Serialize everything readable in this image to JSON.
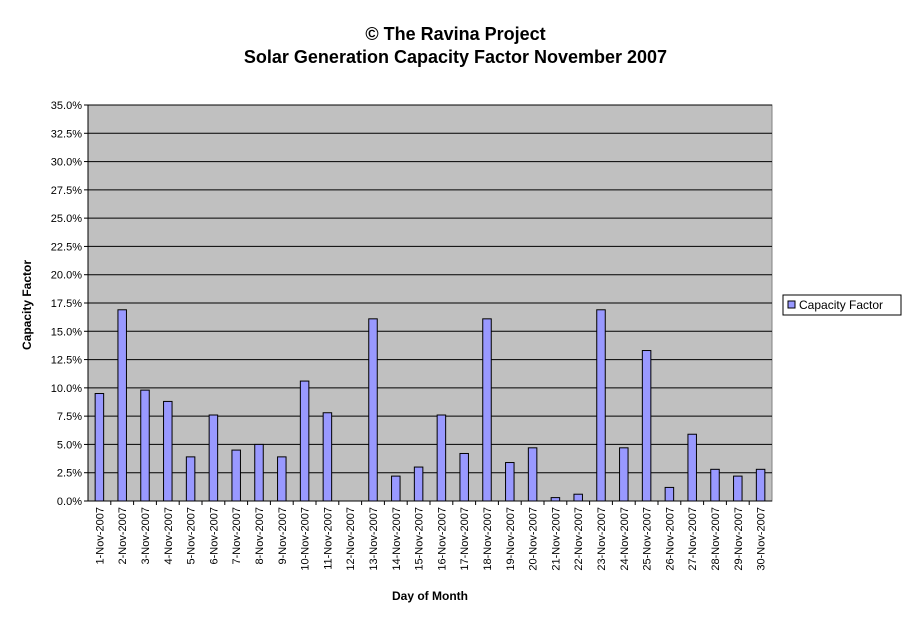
{
  "chart_data": {
    "type": "bar",
    "title": "© The Ravina Project",
    "subtitle": "Solar Generation Capacity Factor November 2007",
    "xlabel": "Day of Month",
    "ylabel": "Capacity Factor",
    "ylim": [
      0,
      0.35
    ],
    "y_tick_step": 0.025,
    "y_tick_labels": [
      "0.0%",
      "2.5%",
      "5.0%",
      "7.5%",
      "10.0%",
      "12.5%",
      "15.0%",
      "17.5%",
      "20.0%",
      "22.5%",
      "25.0%",
      "27.5%",
      "30.0%",
      "32.5%",
      "35.0%"
    ],
    "grid": true,
    "legend_position": "right",
    "categories": [
      "1-Nov-2007",
      "2-Nov-2007",
      "3-Nov-2007",
      "4-Nov-2007",
      "5-Nov-2007",
      "6-Nov-2007",
      "7-Nov-2007",
      "8-Nov-2007",
      "9-Nov-2007",
      "10-Nov-2007",
      "11-Nov-2007",
      "12-Nov-2007",
      "13-Nov-2007",
      "14-Nov-2007",
      "15-Nov-2007",
      "16-Nov-2007",
      "17-Nov-2007",
      "18-Nov-2007",
      "19-Nov-2007",
      "20-Nov-2007",
      "21-Nov-2007",
      "22-Nov-2007",
      "23-Nov-2007",
      "24-Nov-2007",
      "25-Nov-2007",
      "26-Nov-2007",
      "27-Nov-2007",
      "28-Nov-2007",
      "29-Nov-2007",
      "30-Nov-2007"
    ],
    "series": [
      {
        "name": "Capacity Factor",
        "color": "#9999ff",
        "values": [
          0.095,
          0.169,
          0.098,
          0.088,
          0.039,
          0.076,
          0.045,
          0.05,
          0.039,
          0.106,
          0.078,
          0.0,
          0.161,
          0.022,
          0.03,
          0.076,
          0.042,
          0.161,
          0.034,
          0.047,
          0.003,
          0.006,
          0.169,
          0.047,
          0.133,
          0.012,
          0.059,
          0.028,
          0.022,
          0.028
        ]
      }
    ],
    "plot_background": "#c0c0c0",
    "gridline_color": "#000000"
  }
}
